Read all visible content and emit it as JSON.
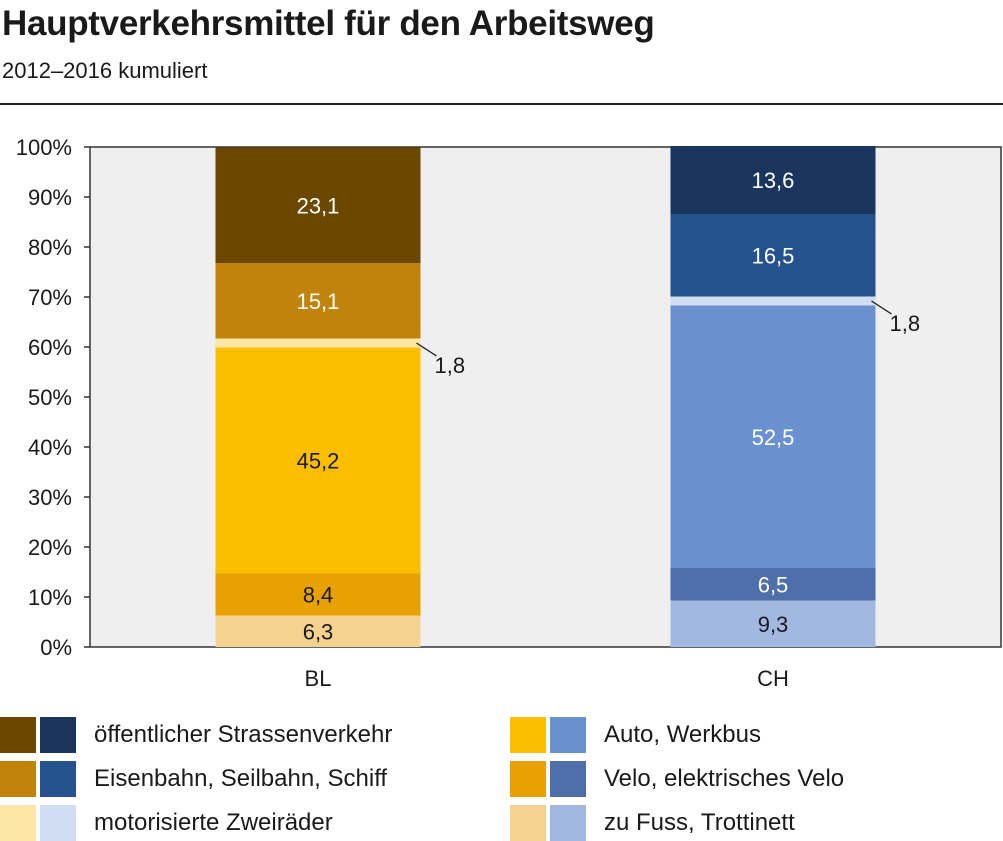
{
  "title": "Hauptverkehrsmittel für den Arbeitsweg",
  "subtitle": "2012–2016 kumuliert",
  "chart_data": {
    "type": "bar",
    "stacked": true,
    "categories": [
      "BL",
      "CH"
    ],
    "ylim": [
      0,
      100
    ],
    "yticks": [
      "0%",
      "10%",
      "20%",
      "30%",
      "40%",
      "50%",
      "60%",
      "70%",
      "80%",
      "90%",
      "100%"
    ],
    "grid": false,
    "series": [
      {
        "name": "zu Fuss, Trottinett",
        "values": [
          6.3,
          9.3
        ],
        "labels": [
          "6,3",
          "9,3"
        ],
        "colors": [
          "#f4d391",
          "#a3b8e0"
        ],
        "label_colors": [
          "#1a1a1a",
          "#1a1a1a"
        ]
      },
      {
        "name": "Velo, elektrisches Velo",
        "values": [
          8.4,
          6.5
        ],
        "labels": [
          "8,4",
          "6,5"
        ],
        "colors": [
          "#e8a102",
          "#4f6faa"
        ],
        "label_colors": [
          "#1a1a1a",
          "#ffffff"
        ]
      },
      {
        "name": "Auto, Werkbus",
        "values": [
          45.2,
          52.5
        ],
        "labels": [
          "45,2",
          "52,5"
        ],
        "colors": [
          "#fbbf00",
          "#6991cf"
        ],
        "label_colors": [
          "#1a1a1a",
          "#ffffff"
        ]
      },
      {
        "name": "motorisierte Zweiräder",
        "values": [
          1.8,
          1.8
        ],
        "labels": [
          "1,8",
          "1,8"
        ],
        "colors": [
          "#fde7a6",
          "#d1ddf2"
        ],
        "label_colors": [
          "#1a1a1a",
          "#1a1a1a"
        ],
        "callout": true
      },
      {
        "name": "Eisenbahn, Seilbahn, Schiff",
        "values": [
          15.1,
          16.5
        ],
        "labels": [
          "15,1",
          "16,5"
        ],
        "colors": [
          "#c0840c",
          "#25528e"
        ],
        "label_colors": [
          "#ffffff",
          "#ffffff"
        ]
      },
      {
        "name": "öffentlicher Strassenverkehr",
        "values": [
          23.1,
          13.6
        ],
        "labels": [
          "23,1",
          "13,6"
        ],
        "colors": [
          "#6b4700",
          "#1a365f"
        ],
        "label_colors": [
          "#ffffff",
          "#ffffff"
        ]
      }
    ]
  },
  "legend": [
    {
      "label": "öffentlicher Strassenverkehr",
      "colors": [
        "#6b4700",
        "#1a365f"
      ]
    },
    {
      "label": "Eisenbahn, Seilbahn, Schiff",
      "colors": [
        "#c0840c",
        "#25528e"
      ]
    },
    {
      "label": "motorisierte Zweiräder",
      "colors": [
        "#fde7a6",
        "#d1ddf2"
      ]
    },
    {
      "label": "Auto, Werkbus",
      "colors": [
        "#fbbf00",
        "#6991cf"
      ]
    },
    {
      "label": "Velo, elektrisches Velo",
      "colors": [
        "#e8a102",
        "#4f6faa"
      ]
    },
    {
      "label": "zu Fuss, Trottinett",
      "colors": [
        "#f4d391",
        "#a3b8e0"
      ]
    }
  ]
}
